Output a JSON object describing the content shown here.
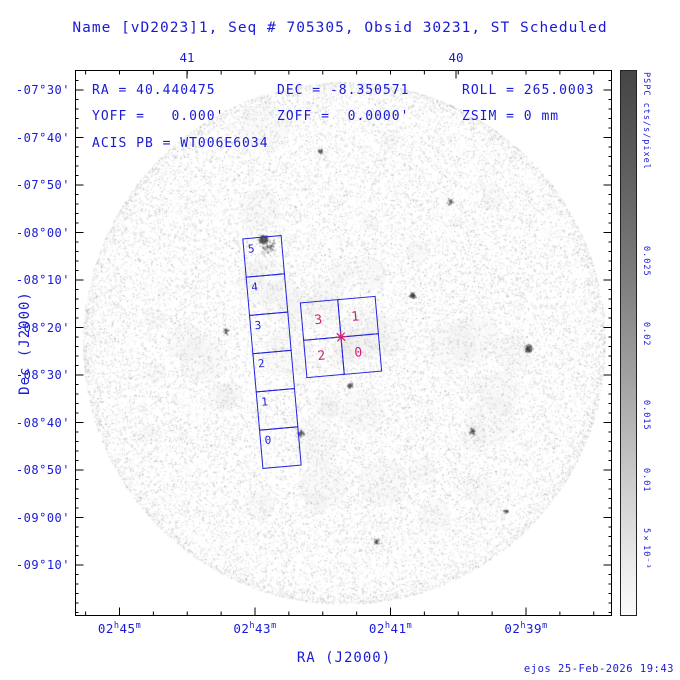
{
  "title": "Name [vD2023]1, Seq # 705305, Obsid 30231, ST Scheduled",
  "info": {
    "ra": "RA = 40.440475",
    "dec": "DEC = -8.350571",
    "roll": "ROLL = 265.0003",
    "yoff": "YOFF =   0.000'",
    "zoff": "ZOFF =  0.0000'",
    "zsim": "ZSIM = 0 mm",
    "acis_pb": "ACIS PB = WT006E6034"
  },
  "axes": {
    "x_title": "RA (J2000)",
    "y_title": "Dec (J2000)",
    "x_ticks": [
      {
        "h": "02",
        "hu": "h",
        "m": "45",
        "mu": "m"
      },
      {
        "h": "02",
        "hu": "h",
        "m": "43",
        "mu": "m"
      },
      {
        "h": "02",
        "hu": "h",
        "m": "41",
        "mu": "m"
      },
      {
        "h": "02",
        "hu": "h",
        "m": "39",
        "mu": "m"
      }
    ],
    "top_ticks": [
      "41",
      "40"
    ],
    "y_ticks": [
      "-07°30'",
      "-07°40'",
      "-07°50'",
      "-08°00'",
      "-08°10'",
      "-08°20'",
      "-08°30'",
      "-08°40'",
      "-08°50'",
      "-09°00'",
      "-09°10'"
    ]
  },
  "colorbar": {
    "title": "PSPC cts/s/pixel",
    "ticks": [
      "0.025",
      "0.02",
      "0.015",
      "0.01",
      "5×10⁻³"
    ]
  },
  "footprints": {
    "strip_labels": [
      "5",
      "4",
      "3",
      "2",
      "1",
      "0"
    ],
    "quad_labels": [
      "3",
      "1",
      "2",
      "0"
    ]
  },
  "footer": "ejos 25-Feb-2026 19:43",
  "colors": {
    "text_blue": "#1a1ad6",
    "overlay_blue": "#2222dd",
    "marker_magenta": "#cc2277",
    "frame_black": "#000000"
  },
  "chart_data": {
    "type": "heatmap",
    "title": "Name [vD2023]1, Seq # 705305, Obsid 30231, ST Scheduled",
    "xlabel": "RA (J2000)",
    "ylabel": "Dec (J2000)",
    "x_tick_labels": [
      "02h45m",
      "02h43m",
      "02h41m",
      "02h39m"
    ],
    "x_top_tick_labels_deg": [
      "41",
      "40"
    ],
    "y_tick_labels": [
      "-07°30'",
      "-07°40'",
      "-07°50'",
      "-08°00'",
      "-08°10'",
      "-08°20'",
      "-08°30'",
      "-08°40'",
      "-08°50'",
      "-09°00'",
      "-09°10'"
    ],
    "colorbar": {
      "label": "PSPC cts/s/pixel",
      "tick_values": [
        0.025,
        0.02,
        0.015,
        0.01,
        0.005
      ]
    },
    "pointing": {
      "ra_deg": 40.440475,
      "dec_deg": -8.350571,
      "roll_deg": 265.0003,
      "yoff_arcmin": 0.0,
      "zoff_arcmin": 0.0,
      "zsim_mm": 0,
      "acis_pb": "WT006E6034"
    },
    "overlays": [
      {
        "name": "ACIS-S chip strip",
        "chip_labels": [
          "5",
          "4",
          "3",
          "2",
          "1",
          "0"
        ],
        "outline_color": "blue",
        "label_color": "blue"
      },
      {
        "name": "ACIS-I 2x2 array",
        "chip_labels": [
          "3",
          "1",
          "2",
          "0"
        ],
        "outline_color": "blue",
        "label_color": "magenta",
        "aimpoint_marker": true
      }
    ],
    "background": "grainy grayscale photon-count sky image, roughly circular field of view with several dark point sources"
  }
}
